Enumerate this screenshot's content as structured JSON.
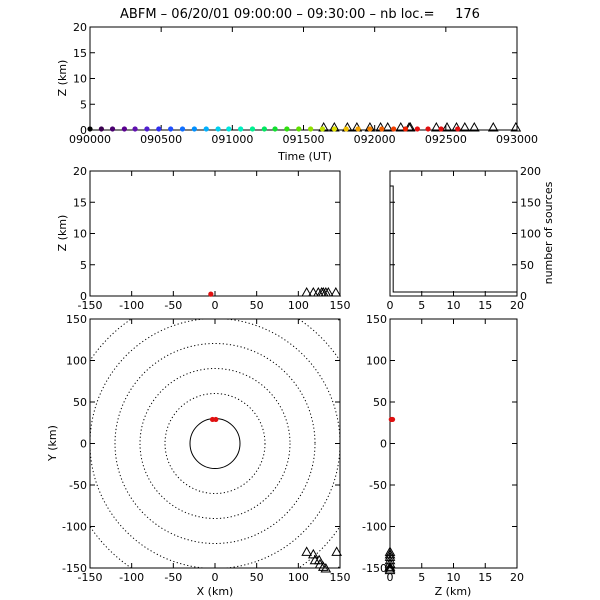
{
  "title": "ABFM – 06/20/01 09:00:00 – 09:30:00 – nb loc.=     176",
  "colors": {
    "axis": "#000000",
    "marker": "#e01010",
    "triangle": "#000000"
  },
  "chart_data": [
    {
      "type": "scatter",
      "panel": "time-height",
      "xlabel": "Time (UT)",
      "ylabel": "Z (km)",
      "xlim": [
        0,
        1800
      ],
      "ylim": [
        0,
        20
      ],
      "x_ticks": [
        {
          "v": 0,
          "label": "090000"
        },
        {
          "v": 300,
          "label": "090500"
        },
        {
          "v": 600,
          "label": "091000"
        },
        {
          "v": 900,
          "label": "091500"
        },
        {
          "v": 1200,
          "label": "092000"
        },
        {
          "v": 1500,
          "label": "092500"
        },
        {
          "v": 1800,
          "label": "093000"
        }
      ],
      "y_ticks": [
        0,
        5,
        10,
        15,
        20
      ],
      "points": [
        {
          "t": 0,
          "z": 0.2,
          "color": "#000000"
        },
        {
          "t": 48,
          "z": 0.2,
          "color": "#3a0050"
        },
        {
          "t": 95,
          "z": 0.2,
          "color": "#4a0070"
        },
        {
          "t": 145,
          "z": 0.2,
          "color": "#5a0090"
        },
        {
          "t": 190,
          "z": 0.2,
          "color": "#6010b0"
        },
        {
          "t": 240,
          "z": 0.2,
          "color": "#5020d0"
        },
        {
          "t": 290,
          "z": 0.2,
          "color": "#3030f0"
        },
        {
          "t": 340,
          "z": 0.2,
          "color": "#2050ff"
        },
        {
          "t": 390,
          "z": 0.2,
          "color": "#1070ff"
        },
        {
          "t": 440,
          "z": 0.2,
          "color": "#0090ff"
        },
        {
          "t": 490,
          "z": 0.2,
          "color": "#00b0ff"
        },
        {
          "t": 540,
          "z": 0.2,
          "color": "#00d0f0"
        },
        {
          "t": 585,
          "z": 0.2,
          "color": "#00e8e0"
        },
        {
          "t": 635,
          "z": 0.2,
          "color": "#00f0c0"
        },
        {
          "t": 685,
          "z": 0.2,
          "color": "#00f090"
        },
        {
          "t": 735,
          "z": 0.2,
          "color": "#00e860"
        },
        {
          "t": 780,
          "z": 0.2,
          "color": "#10e030"
        },
        {
          "t": 830,
          "z": 0.2,
          "color": "#30e010"
        },
        {
          "t": 880,
          "z": 0.2,
          "color": "#60e000"
        },
        {
          "t": 930,
          "z": 0.2,
          "color": "#90e000"
        },
        {
          "t": 980,
          "z": 0.2,
          "color": "#c0e000"
        },
        {
          "t": 1030,
          "z": 0.2,
          "color": "#e0e000"
        },
        {
          "t": 1080,
          "z": 0.2,
          "color": "#f0c000"
        },
        {
          "t": 1130,
          "z": 0.2,
          "color": "#f0a000"
        },
        {
          "t": 1180,
          "z": 0.2,
          "color": "#f08000"
        },
        {
          "t": 1230,
          "z": 0.2,
          "color": "#f06000"
        },
        {
          "t": 1280,
          "z": 0.2,
          "color": "#f04000"
        },
        {
          "t": 1330,
          "z": 0.2,
          "color": "#f02000"
        },
        {
          "t": 1380,
          "z": 0.2,
          "color": "#e81010"
        },
        {
          "t": 1425,
          "z": 0.2,
          "color": "#e01010"
        },
        {
          "t": 1480,
          "z": 0.2,
          "color": "#e01010"
        },
        {
          "t": 1550,
          "z": 0.2,
          "color": "#e01010"
        }
      ],
      "triangles": [
        {
          "t": 985,
          "z": 0
        },
        {
          "t": 1030,
          "z": 0
        },
        {
          "t": 1085,
          "z": 0
        },
        {
          "t": 1125,
          "z": 0
        },
        {
          "t": 1180,
          "z": 0
        },
        {
          "t": 1225,
          "z": 0
        },
        {
          "t": 1255,
          "z": 0
        },
        {
          "t": 1310,
          "z": 0
        },
        {
          "t": 1345,
          "z": 0
        },
        {
          "t": 1350,
          "z": 0
        },
        {
          "t": 1460,
          "z": 0
        },
        {
          "t": 1505,
          "z": 0
        },
        {
          "t": 1545,
          "z": 0
        },
        {
          "t": 1580,
          "z": 0
        },
        {
          "t": 1620,
          "z": 0
        },
        {
          "t": 1700,
          "z": 0
        },
        {
          "t": 1795,
          "z": 0
        }
      ]
    },
    {
      "type": "scatter",
      "panel": "x-height",
      "xlabel": "",
      "ylabel": "Z (km)",
      "xlim": [
        -150,
        150
      ],
      "ylim": [
        0,
        20
      ],
      "x_ticks": [
        -150,
        -100,
        -50,
        0,
        50,
        100,
        150
      ],
      "y_ticks": [
        0,
        5,
        10,
        15,
        20
      ],
      "points": [
        {
          "x": -5,
          "z": 0.3
        }
      ],
      "triangles": [
        {
          "x": 110,
          "z": 0
        },
        {
          "x": 118,
          "z": 0
        },
        {
          "x": 124,
          "z": 0
        },
        {
          "x": 128,
          "z": 0
        },
        {
          "x": 130,
          "z": 0
        },
        {
          "x": 133,
          "z": 0
        },
        {
          "x": 136,
          "z": 0
        },
        {
          "x": 145,
          "z": 0
        }
      ]
    },
    {
      "type": "bar",
      "panel": "height-histogram",
      "xlabel": "",
      "ylabel": "number of sources",
      "xlim": [
        0,
        20
      ],
      "ylim": [
        0,
        200
      ],
      "x_ticks": [
        0,
        5,
        10,
        15,
        20
      ],
      "y_ticks": [
        0,
        50,
        100,
        150,
        200
      ],
      "bins": [
        {
          "z0": 0,
          "z1": 0.5,
          "count": 176
        },
        {
          "z0": 0.5,
          "count": 0
        }
      ]
    },
    {
      "type": "scatter",
      "panel": "plan-view",
      "xlabel": "X (km)",
      "ylabel": "Y (km)",
      "xlim": [
        -150,
        150
      ],
      "ylim": [
        -150,
        150
      ],
      "x_ticks": [
        -150,
        -100,
        -50,
        0,
        50,
        100,
        150
      ],
      "y_ticks": [
        -150,
        -100,
        -50,
        0,
        50,
        100,
        150
      ],
      "range_rings_km": [
        30,
        60,
        90,
        120,
        150,
        180,
        210
      ],
      "points": [
        {
          "x": -3,
          "y": 29
        },
        {
          "x": 1,
          "y": 29
        }
      ],
      "triangles": [
        {
          "x": 110,
          "y": -130
        },
        {
          "x": 118,
          "y": -133
        },
        {
          "x": 120,
          "y": -140
        },
        {
          "x": 125,
          "y": -140
        },
        {
          "x": 126,
          "y": -145
        },
        {
          "x": 130,
          "y": -148
        },
        {
          "x": 133,
          "y": -150
        },
        {
          "x": 146,
          "y": -130
        }
      ]
    },
    {
      "type": "scatter",
      "panel": "height-y",
      "xlabel": "Z (km)",
      "ylabel": "",
      "xlim": [
        0,
        20
      ],
      "ylim": [
        -150,
        150
      ],
      "x_ticks": [
        0,
        5,
        10,
        15,
        20
      ],
      "y_ticks": [
        -150,
        -100,
        -50,
        0,
        50,
        100,
        150
      ],
      "points": [
        {
          "z": 0.2,
          "y": 29
        },
        {
          "z": 0.4,
          "y": 29
        }
      ],
      "triangles": [
        {
          "z": 0,
          "y": -130
        },
        {
          "z": 0,
          "y": -133
        },
        {
          "z": 0,
          "y": -136
        },
        {
          "z": 0,
          "y": -140
        },
        {
          "z": 0,
          "y": -144
        },
        {
          "z": 0,
          "y": -148
        },
        {
          "z": 0,
          "y": -150
        },
        {
          "z": 0,
          "y": -152
        }
      ]
    }
  ]
}
